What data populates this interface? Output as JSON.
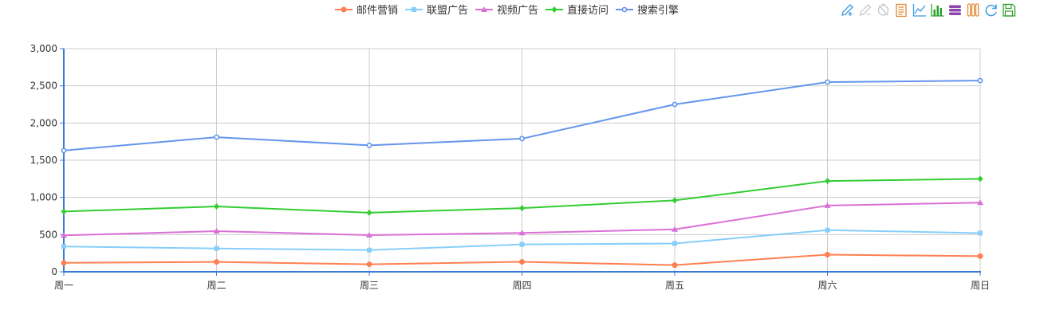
{
  "toolbar": {
    "icons": [
      "zoom-in-icon",
      "zoom-reset-icon",
      "restore-icon",
      "data-view-icon",
      "line-chart-icon",
      "bar-chart-icon",
      "stack-icon",
      "tiled-icon",
      "refresh-icon",
      "save-as-image-icon"
    ]
  },
  "chart_data": {
    "type": "line",
    "title": "",
    "xlabel": "",
    "ylabel": "",
    "categories": [
      "周一",
      "周二",
      "周三",
      "周四",
      "周五",
      "周六",
      "周日"
    ],
    "ylim": [
      0,
      3000
    ],
    "yticks": [
      0,
      500,
      1000,
      1500,
      2000,
      2500,
      3000
    ],
    "ytick_labels": [
      "0",
      "500",
      "1,000",
      "1,500",
      "2,000",
      "2,500",
      "3,000"
    ],
    "grid": true,
    "legend_position": "top-center",
    "series": [
      {
        "name": "邮件营销",
        "color": "#ff7f50",
        "marker": "circle",
        "values": [
          120,
          132,
          101,
          134,
          90,
          230,
          210
        ]
      },
      {
        "name": "联盟广告",
        "color": "#87cefa",
        "marker": "square",
        "values": [
          340,
          314,
          292,
          368,
          380,
          560,
          520
        ]
      },
      {
        "name": "视频广告",
        "color": "#da70d6",
        "marker": "triangle",
        "values": [
          490,
          546,
          493,
          522,
          570,
          890,
          930
        ]
      },
      {
        "name": "直接访问",
        "color": "#32cd32",
        "marker": "diamond",
        "values": [
          810,
          878,
          794,
          856,
          960,
          1220,
          1250
        ]
      },
      {
        "name": "搜索引擎",
        "color": "#6495ed",
        "marker": "empty-circle",
        "values": [
          1630,
          1810,
          1700,
          1790,
          2250,
          2550,
          2570
        ]
      }
    ]
  }
}
